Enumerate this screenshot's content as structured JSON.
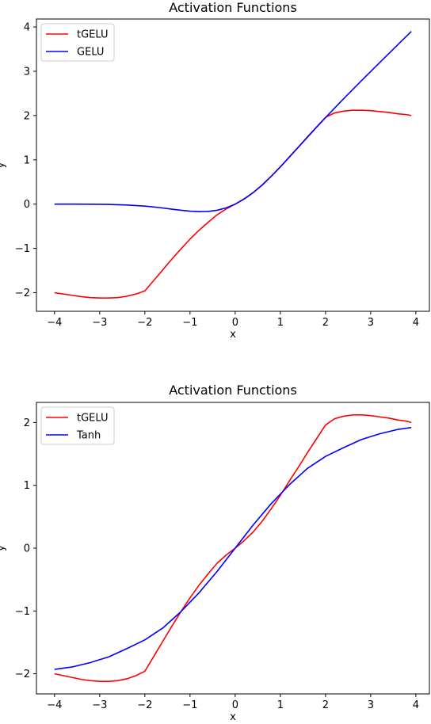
{
  "chart_data": [
    {
      "type": "line",
      "title": "Activation Functions",
      "xlabel": "x",
      "ylabel": "y",
      "xlim": [
        -4.4,
        4.3
      ],
      "ylim": [
        -2.42,
        4.18
      ],
      "xticks": [
        -4,
        -3,
        -2,
        -1,
        0,
        1,
        2,
        3,
        4
      ],
      "yticks": [
        -2,
        -1,
        0,
        1,
        2,
        3,
        4
      ],
      "xtick_labels": [
        "−4",
        "−3",
        "−2",
        "−1",
        "0",
        "1",
        "2",
        "3",
        "4"
      ],
      "ytick_labels": [
        "−2",
        "−1",
        "0",
        "1",
        "2",
        "3",
        "4"
      ],
      "grid": false,
      "legend": "top-left",
      "series": [
        {
          "name": "tGELU",
          "color": "#ff0000",
          "x": [
            -4.0,
            -3.8,
            -3.6,
            -3.4,
            -3.2,
            -3.0,
            -2.8,
            -2.6,
            -2.4,
            -2.2,
            -2.0,
            -1.8,
            -1.6,
            -1.4,
            -1.2,
            -1.0,
            -0.8,
            -0.6,
            -0.4,
            -0.2,
            0.0,
            0.2,
            0.4,
            0.6,
            0.8,
            1.0,
            1.2,
            1.4,
            1.6,
            1.8,
            2.0,
            2.2,
            2.4,
            2.6,
            2.8,
            3.0,
            3.2,
            3.4,
            3.6,
            3.8,
            3.9
          ],
          "y": [
            -2.0,
            -2.03,
            -2.06,
            -2.09,
            -2.11,
            -2.12,
            -2.12,
            -2.11,
            -2.08,
            -2.03,
            -1.96,
            -1.72,
            -1.48,
            -1.24,
            -1.01,
            -0.79,
            -0.59,
            -0.41,
            -0.24,
            -0.11,
            0.0,
            0.12,
            0.26,
            0.43,
            0.63,
            0.84,
            1.07,
            1.29,
            1.52,
            1.74,
            1.96,
            2.06,
            2.1,
            2.12,
            2.12,
            2.11,
            2.09,
            2.07,
            2.04,
            2.02,
            2.0
          ]
        },
        {
          "name": "GELU",
          "color": "#0000ff",
          "x": [
            -4.0,
            -3.6,
            -3.2,
            -2.8,
            -2.4,
            -2.0,
            -1.8,
            -1.6,
            -1.4,
            -1.2,
            -1.0,
            -0.8,
            -0.6,
            -0.4,
            -0.2,
            0.0,
            0.2,
            0.4,
            0.6,
            0.8,
            1.0,
            1.2,
            1.4,
            1.6,
            1.8,
            2.0,
            2.4,
            2.8,
            3.2,
            3.6,
            3.9
          ],
          "y": [
            0.0,
            0.0,
            -0.002,
            -0.007,
            -0.02,
            -0.045,
            -0.065,
            -0.088,
            -0.113,
            -0.138,
            -0.159,
            -0.17,
            -0.165,
            -0.138,
            -0.084,
            0.0,
            0.116,
            0.262,
            0.435,
            0.63,
            0.841,
            1.062,
            1.287,
            1.512,
            1.735,
            1.955,
            2.38,
            2.793,
            3.198,
            3.6,
            3.9
          ]
        }
      ]
    },
    {
      "type": "line",
      "title": "Activation Functions",
      "xlabel": "x",
      "ylabel": "y",
      "xlim": [
        -4.4,
        4.3
      ],
      "ylim": [
        -2.32,
        2.32
      ],
      "xticks": [
        -4,
        -3,
        -2,
        -1,
        0,
        1,
        2,
        3,
        4
      ],
      "yticks": [
        -2,
        -1,
        0,
        1,
        2
      ],
      "xtick_labels": [
        "−4",
        "−3",
        "−2",
        "−1",
        "0",
        "1",
        "2",
        "3",
        "4"
      ],
      "ytick_labels": [
        "−2",
        "−1",
        "0",
        "1",
        "2"
      ],
      "grid": false,
      "legend": "top-left",
      "series": [
        {
          "name": "tGELU",
          "color": "#ff0000",
          "x": [
            -4.0,
            -3.8,
            -3.6,
            -3.4,
            -3.2,
            -3.0,
            -2.8,
            -2.6,
            -2.4,
            -2.2,
            -2.0,
            -1.8,
            -1.6,
            -1.4,
            -1.2,
            -1.0,
            -0.8,
            -0.6,
            -0.4,
            -0.2,
            0.0,
            0.2,
            0.4,
            0.6,
            0.8,
            1.0,
            1.2,
            1.4,
            1.6,
            1.8,
            2.0,
            2.2,
            2.4,
            2.6,
            2.8,
            3.0,
            3.2,
            3.4,
            3.6,
            3.8,
            3.9
          ],
          "y": [
            -2.0,
            -2.03,
            -2.06,
            -2.09,
            -2.11,
            -2.12,
            -2.12,
            -2.11,
            -2.08,
            -2.03,
            -1.96,
            -1.72,
            -1.48,
            -1.24,
            -1.01,
            -0.79,
            -0.59,
            -0.41,
            -0.24,
            -0.11,
            0.0,
            0.12,
            0.26,
            0.43,
            0.63,
            0.84,
            1.07,
            1.29,
            1.52,
            1.74,
            1.96,
            2.06,
            2.1,
            2.12,
            2.12,
            2.11,
            2.09,
            2.07,
            2.04,
            2.02,
            2.0
          ]
        },
        {
          "name": "Tanh",
          "color": "#0000ff",
          "x": [
            -4.0,
            -3.6,
            -3.2,
            -2.8,
            -2.4,
            -2.0,
            -1.6,
            -1.2,
            -0.8,
            -0.4,
            0.0,
            0.4,
            0.8,
            1.2,
            1.6,
            2.0,
            2.4,
            2.8,
            3.2,
            3.6,
            3.9
          ],
          "y": [
            -1.93,
            -1.89,
            -1.82,
            -1.73,
            -1.6,
            -1.46,
            -1.27,
            -1.01,
            -0.71,
            -0.37,
            0.0,
            0.37,
            0.71,
            1.01,
            1.27,
            1.46,
            1.6,
            1.73,
            1.82,
            1.89,
            1.92
          ]
        }
      ]
    }
  ]
}
